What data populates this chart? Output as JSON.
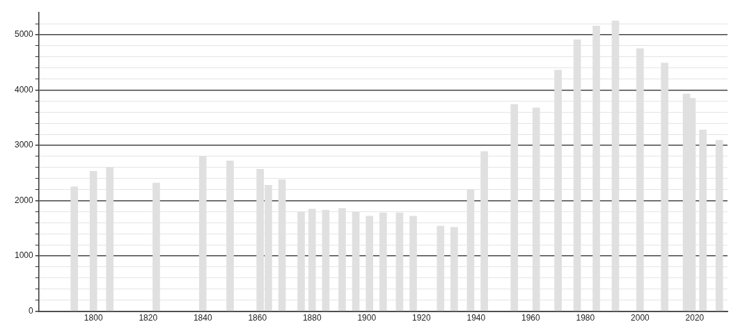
{
  "chart_data": {
    "type": "bar",
    "x": [
      1793,
      1800,
      1806,
      1823,
      1840,
      1850,
      1861,
      1864,
      1869,
      1876,
      1880,
      1885,
      1891,
      1896,
      1901,
      1906,
      1912,
      1917,
      1927,
      1932,
      1938,
      1943,
      1954,
      1962,
      1970,
      1977,
      1984,
      1991,
      2000,
      2009,
      2017,
      2019,
      2023,
      2029
    ],
    "values": [
      2250,
      2530,
      2600,
      2320,
      2800,
      2720,
      2570,
      2280,
      2380,
      1800,
      1850,
      1830,
      1860,
      1800,
      1720,
      1780,
      1780,
      1720,
      1540,
      1520,
      2200,
      2890,
      3740,
      3680,
      4360,
      4910,
      5160,
      5250,
      4750,
      4490,
      3930,
      3850,
      3280,
      3090
    ],
    "color": "#e0e0e0",
    "xlim": [
      1780,
      2032
    ],
    "xticks": [
      1800,
      1820,
      1840,
      1860,
      1880,
      1900,
      1920,
      1940,
      1960,
      1980,
      2000,
      2020
    ],
    "ylim": [
      0,
      5400
    ],
    "yticks": [
      0,
      {
        "value": 200,
        "label": null
      },
      {
        "value": 400,
        "label": null
      },
      {
        "value": 600,
        "label": null
      },
      {
        "value": 800,
        "label": null
      },
      1000,
      {
        "value": 1200,
        "label": null
      },
      {
        "value": 1400,
        "label": null
      },
      {
        "value": 1600,
        "label": null
      },
      {
        "value": 1800,
        "label": null
      },
      2000,
      {
        "value": 2200,
        "label": null
      },
      {
        "value": 2400,
        "label": null
      },
      {
        "value": 2600,
        "label": null
      },
      {
        "value": 2800,
        "label": null
      },
      3000,
      {
        "value": 3200,
        "label": null
      },
      {
        "value": 3400,
        "label": null
      },
      {
        "value": 3600,
        "label": null
      },
      {
        "value": 3800,
        "label": null
      },
      4000,
      {
        "value": 4200,
        "label": null
      },
      {
        "value": 4400,
        "label": null
      },
      {
        "value": 4600,
        "label": null
      },
      {
        "value": 4800,
        "label": null
      },
      5000,
      {
        "value": 5200,
        "label": null
      }
    ],
    "grid": "y",
    "legend": false
  }
}
